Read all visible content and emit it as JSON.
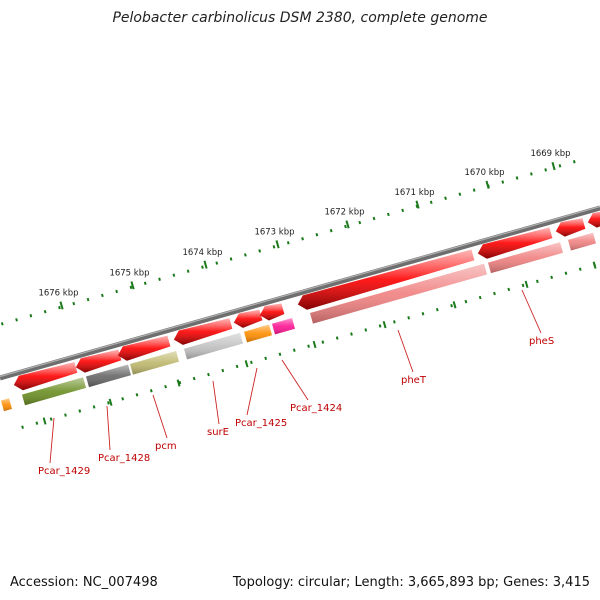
{
  "title": "Pelobacter carbinolicus DSM 2380, complete genome",
  "footer": {
    "accession": "Accession: NC_007498",
    "summary": "Topology: circular; Length: 3,665,893 bp; Genes: 3,415"
  },
  "colors": {
    "backbone": "#808080",
    "tick": "#1a7a1a",
    "tick_label": "#222222",
    "gene_label": "#c00000",
    "leader": "#cc2222"
  },
  "ticks": [
    {
      "label": "1669 kbp"
    },
    {
      "label": "1670 kbp"
    },
    {
      "label": "1671 kbp"
    },
    {
      "label": "1672 kbp"
    },
    {
      "label": "1673 kbp"
    },
    {
      "label": "1674 kbp"
    },
    {
      "label": "1675 kbp"
    },
    {
      "label": "1676 kbp"
    }
  ],
  "genes": [
    {
      "label": "Pcar_1429",
      "fill": "#6b8e23"
    },
    {
      "label": "Pcar_1428",
      "fill": "#666666"
    },
    {
      "label": "pcm",
      "fill": "#bdb76b"
    },
    {
      "label": "surE",
      "fill": "#c0c0c0"
    },
    {
      "label": "Pcar_1425",
      "fill": "#ff8c00"
    },
    {
      "label": "Pcar_1424",
      "fill": "#ff1493"
    },
    {
      "label": "pheT",
      "fill": "#f08080"
    },
    {
      "label": "pheS",
      "fill": "#f08080"
    }
  ]
}
